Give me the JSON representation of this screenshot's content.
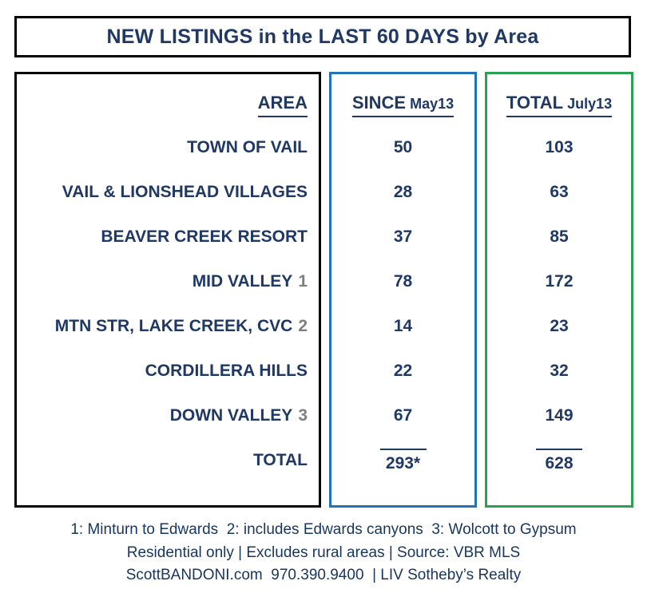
{
  "title": "NEW LISTINGS in the LAST 60 DAYS by Area",
  "table": {
    "area_header": "AREA",
    "since_label": "SINCE",
    "since_date": "May13",
    "total_label": "TOTAL",
    "total_date": "July13",
    "rows": [
      {
        "area": "TOWN OF VAIL",
        "note": "",
        "since": "50",
        "total": "103"
      },
      {
        "area": "VAIL &  LIONSHEAD VILLAGES",
        "note": "",
        "since": "28",
        "total": "63"
      },
      {
        "area": "BEAVER CREEK RESORT",
        "note": "",
        "since": "37",
        "total": "85"
      },
      {
        "area": "MID VALLEY",
        "note": "1",
        "since": "78",
        "total": "172"
      },
      {
        "area": "MTN STR, LAKE CREEK, CVC",
        "note": "2",
        "since": "14",
        "total": "23"
      },
      {
        "area": "CORDILLERA HILLS",
        "note": "",
        "since": "22",
        "total": "32"
      },
      {
        "area": "DOWN VALLEY",
        "note": "3",
        "since": "67",
        "total": "149"
      }
    ],
    "totals": {
      "label": "TOTAL",
      "since": "293*",
      "total": "628"
    }
  },
  "footer": {
    "line1": "1: Minturn to Edwards  2: includes Edwards canyons  3: Wolcott to Gypsum",
    "line2": "Residential only | Excludes rural areas | Source: VBR MLS",
    "line3": "ScottBANDONI.com  970.390.9400  | LIV Sotheby’s Realty"
  },
  "colors": {
    "text_navy": "#1F3864",
    "black_border": "#000000",
    "blue_border": "#2173B4",
    "green_border": "#2AA152",
    "note_gray": "#7F7F7F"
  },
  "chart_data": {
    "type": "table",
    "title": "NEW LISTINGS in the LAST 60 DAYS by Area",
    "columns": [
      "AREA",
      "SINCE May13",
      "TOTAL July13"
    ],
    "rows": [
      [
        "TOWN OF VAIL",
        50,
        103
      ],
      [
        "VAIL & LIONSHEAD VILLAGES",
        28,
        63
      ],
      [
        "BEAVER CREEK RESORT",
        37,
        85
      ],
      [
        "MID VALLEY 1",
        78,
        172
      ],
      [
        "MTN STR, LAKE CREEK, CVC 2",
        14,
        23
      ],
      [
        "CORDILLERA HILLS",
        22,
        32
      ],
      [
        "DOWN VALLEY 3",
        67,
        149
      ],
      [
        "TOTAL",
        "293*",
        628
      ]
    ],
    "footnotes": [
      "1: Minturn to Edwards",
      "2: includes Edwards canyons",
      "3: Wolcott to Gypsum",
      "Residential only | Excludes rural areas | Source: VBR MLS",
      "ScottBANDONI.com 970.390.9400 | LIV Sotheby’s Realty"
    ]
  }
}
